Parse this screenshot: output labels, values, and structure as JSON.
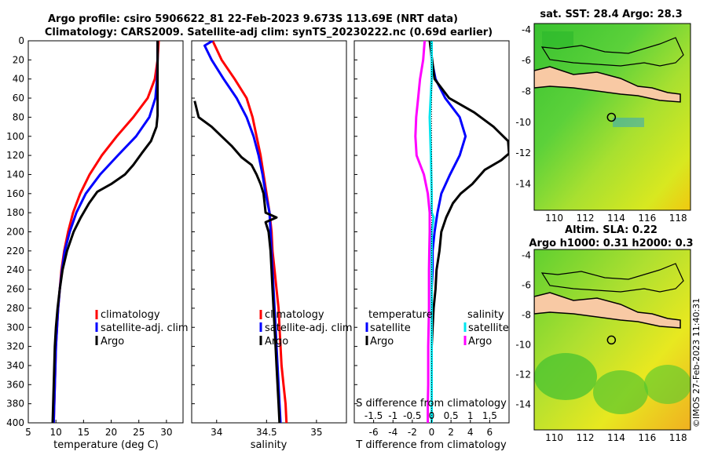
{
  "figure": {
    "title_line1": "Argo profile: csiro 5906622_81 22-Feb-2023 9.673S 113.69E (NRT data)",
    "title_line2": "Climatology: CARS2009. Satellite-adj clim: synTS_20230222.nc (0.69d earlier)",
    "copyright": "©IMOS 27-Feb-2023 11:40:31"
  },
  "colors": {
    "climatology": "#ff0000",
    "satellite": "#0000ff",
    "argo": "#000000",
    "sal_satellite": "#00e5ee",
    "sal_argo": "#ff00ff",
    "land": "#f8c9a4"
  },
  "chart_data": [
    {
      "id": "temperature",
      "type": "line",
      "xlabel": "temperature (deg C)",
      "ylabel": "depth",
      "xlim": [
        5,
        33
      ],
      "ylim": [
        0,
        400
      ],
      "x_ticks": [
        "5",
        "10",
        "15",
        "20",
        "25",
        "30"
      ],
      "y_ticks": [
        "0",
        "20",
        "40",
        "60",
        "80",
        "100",
        "120",
        "140",
        "160",
        "180",
        "200",
        "220",
        "240",
        "260",
        "280",
        "300",
        "320",
        "340",
        "360",
        "380",
        "400"
      ],
      "legend": [
        "climatology",
        "satellite-adj. clim",
        "Argo"
      ],
      "series": [
        {
          "name": "climatology",
          "color": "#ff0000",
          "depth": [
            0,
            20,
            40,
            60,
            80,
            100,
            120,
            140,
            160,
            180,
            200,
            220,
            240,
            260,
            280,
            300,
            320,
            340,
            360,
            380,
            400
          ],
          "values": [
            28.6,
            28.4,
            27.9,
            26.6,
            24.0,
            21.0,
            18.3,
            16.1,
            14.4,
            13.1,
            12.2,
            11.5,
            11.0,
            10.7,
            10.4,
            10.2,
            10.0,
            9.9,
            9.8,
            9.7,
            9.6
          ]
        },
        {
          "name": "satellite-adj. clim",
          "color": "#0000ff",
          "depth": [
            0,
            20,
            40,
            60,
            80,
            100,
            120,
            140,
            160,
            180,
            200,
            220,
            240,
            260,
            280,
            300,
            320,
            340,
            360,
            380,
            400
          ],
          "values": [
            28.4,
            28.4,
            28.3,
            28.0,
            26.9,
            24.5,
            21.2,
            18.0,
            15.4,
            13.7,
            12.5,
            11.6,
            11.1,
            10.7,
            10.4,
            10.2,
            10.0,
            9.9,
            9.8,
            9.7,
            9.6
          ]
        },
        {
          "name": "Argo",
          "color": "#000000",
          "depth": [
            0,
            40,
            78,
            90,
            105,
            118,
            130,
            140,
            150,
            158,
            170,
            185,
            200,
            220,
            240,
            260,
            280,
            300,
            320,
            340,
            360,
            380,
            400
          ],
          "values": [
            28.4,
            28.4,
            28.4,
            28.2,
            27.2,
            25.5,
            24.0,
            22.5,
            20.0,
            17.5,
            16.0,
            14.5,
            13.2,
            12.0,
            11.2,
            10.7,
            10.3,
            10.0,
            9.8,
            9.7,
            9.6,
            9.5,
            9.4
          ]
        }
      ]
    },
    {
      "id": "salinity",
      "type": "line",
      "xlabel": "salinity",
      "xlim": [
        33.75,
        35.3
      ],
      "ylim": [
        0,
        400
      ],
      "x_ticks": [
        "34",
        "34.5",
        "35"
      ],
      "legend": [
        "climatology",
        "satellite-adj. clim",
        "Argo"
      ],
      "series": [
        {
          "name": "climatology",
          "color": "#ff0000",
          "depth": [
            0,
            20,
            40,
            60,
            80,
            100,
            120,
            140,
            160,
            180,
            200,
            220,
            240,
            260,
            280,
            300,
            320,
            340,
            360,
            380,
            400
          ],
          "values": [
            33.96,
            34.05,
            34.18,
            34.3,
            34.36,
            34.4,
            34.44,
            34.47,
            34.5,
            34.53,
            34.55,
            34.56,
            34.58,
            34.6,
            34.62,
            34.63,
            34.64,
            34.65,
            34.67,
            34.69,
            34.7
          ]
        },
        {
          "name": "satellite-adj. clim",
          "color": "#0000ff",
          "depth": [
            0,
            5,
            20,
            40,
            60,
            80,
            100,
            120,
            140,
            160,
            180,
            200,
            220,
            240,
            260,
            280,
            300,
            320,
            340,
            360,
            380,
            400
          ],
          "values": [
            33.96,
            33.88,
            33.95,
            34.07,
            34.2,
            34.3,
            34.37,
            34.42,
            34.46,
            34.49,
            34.53,
            34.54,
            34.55,
            34.56,
            34.57,
            34.58,
            34.59,
            34.6,
            34.61,
            34.62,
            34.63,
            34.64
          ]
        },
        {
          "name": "Argo",
          "color": "#000000",
          "depth": [
            63,
            80,
            90,
            100,
            110,
            122,
            130,
            140,
            150,
            160,
            170,
            180,
            185,
            190,
            200,
            220,
            240,
            260,
            280,
            300,
            320,
            340,
            360,
            380,
            400
          ],
          "values": [
            33.78,
            33.82,
            33.95,
            34.05,
            34.15,
            34.25,
            34.35,
            34.4,
            34.44,
            34.47,
            34.48,
            34.49,
            34.6,
            34.49,
            34.52,
            34.54,
            34.55,
            34.56,
            34.57,
            34.58,
            34.59,
            34.6,
            34.61,
            34.62,
            34.63
          ]
        }
      ]
    },
    {
      "id": "differences",
      "type": "line",
      "xlabel": "T difference from climatology",
      "x2label": "S difference from climatology",
      "xlim": [
        -8,
        8
      ],
      "ylim": [
        0,
        400
      ],
      "x_ticks": [
        "-6",
        "-4",
        "-2",
        "0",
        "2",
        "4",
        "6"
      ],
      "x2_ticks": [
        "-1.5",
        "-1",
        "-0.5",
        "0",
        "0.5",
        "1",
        "1.5"
      ],
      "legend_temperature_title": "temperature",
      "legend_salinity_title": "salinity",
      "legend_temperature": [
        "satellite",
        "Argo"
      ],
      "legend_salinity": [
        "satellite",
        "Argo"
      ],
      "series": [
        {
          "name": "T satellite",
          "color": "#0000ff",
          "depth": [
            0,
            20,
            40,
            60,
            80,
            100,
            120,
            140,
            160,
            180,
            200,
            220,
            240,
            260,
            280,
            300,
            320,
            340,
            360,
            380,
            400
          ],
          "values": [
            -0.1,
            0.0,
            0.4,
            1.4,
            2.9,
            3.5,
            2.9,
            1.9,
            1.0,
            0.6,
            0.3,
            0.1,
            0.1,
            0.0,
            0.0,
            0.0,
            0.0,
            0.0,
            0.0,
            0.0,
            0.0
          ]
        },
        {
          "name": "T Argo",
          "color": "#000000",
          "depth": [
            0,
            40,
            60,
            75,
            90,
            105,
            118,
            125,
            135,
            150,
            160,
            170,
            185,
            200,
            220,
            240,
            260,
            280,
            300,
            320,
            340,
            360,
            380,
            400
          ],
          "values": [
            -0.2,
            0.3,
            1.8,
            4.4,
            6.4,
            7.9,
            8.0,
            7.2,
            5.5,
            4.2,
            3.0,
            2.2,
            1.5,
            1.0,
            0.8,
            0.5,
            0.4,
            0.2,
            0.1,
            0.0,
            0.0,
            0.0,
            0.0,
            0.0
          ]
        },
        {
          "name": "S satellite",
          "color": "#00e5ee",
          "depth": [
            0,
            40,
            80,
            120,
            160,
            180,
            185,
            200,
            260,
            300,
            340,
            400
          ],
          "values": [
            0.0,
            0.0,
            -0.05,
            -0.02,
            0.0,
            0.0,
            0.05,
            0.0,
            0.0,
            0.0,
            0.0,
            0.0
          ]
        },
        {
          "name": "S Argo",
          "color": "#ff00ff",
          "depth": [
            0,
            20,
            40,
            60,
            80,
            100,
            120,
            140,
            160,
            180,
            200,
            220,
            240,
            260,
            280,
            300,
            320,
            340,
            360,
            380,
            400
          ],
          "values": [
            -0.18,
            -0.22,
            -0.3,
            -0.35,
            -0.4,
            -0.42,
            -0.39,
            -0.2,
            -0.1,
            -0.05,
            -0.05,
            -0.06,
            -0.07,
            -0.07,
            -0.07,
            -0.08,
            -0.09,
            -0.09,
            -0.09,
            -0.1,
            -0.1
          ]
        }
      ]
    },
    {
      "id": "sst_map",
      "type": "heatmap",
      "title": "sat. SST: 28.4 Argo: 28.3",
      "x_ticks": [
        "110",
        "112",
        "114",
        "116",
        "118"
      ],
      "y_ticks": [
        "-4",
        "-6",
        "-8",
        "-10",
        "-12",
        "-14"
      ],
      "xlim": [
        108.7,
        118.8
      ],
      "ylim": [
        -15.7,
        -3.6
      ],
      "argo_lon": 113.69,
      "argo_lat": -9.673
    },
    {
      "id": "sla_map",
      "type": "heatmap",
      "title_line1": "Altim. SLA: 0.22",
      "title_line2": "Argo h1000: 0.31 h2000: 0.3",
      "x_ticks": [
        "110",
        "112",
        "114",
        "116",
        "118"
      ],
      "y_ticks": [
        "-4",
        "-6",
        "-8",
        "-10",
        "-12",
        "-14"
      ],
      "xlim": [
        108.7,
        118.8
      ],
      "ylim": [
        -15.7,
        -3.6
      ],
      "argo_lon": 113.69,
      "argo_lat": -9.673
    }
  ]
}
